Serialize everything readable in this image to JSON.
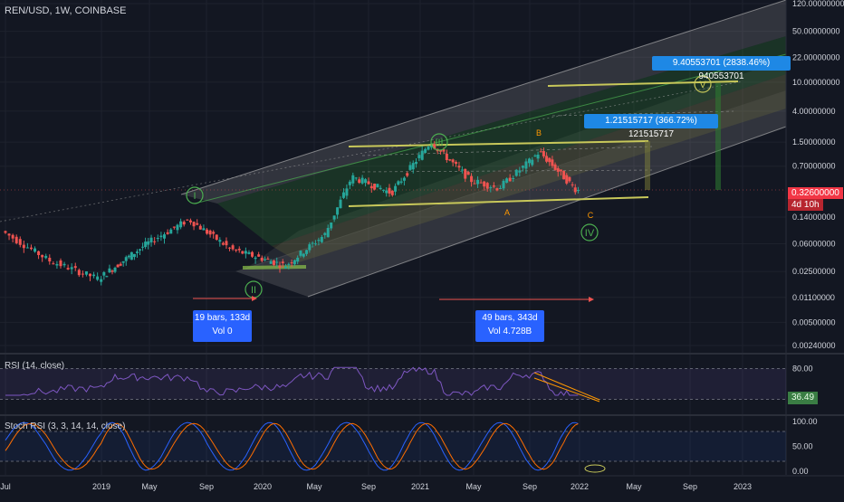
{
  "header": {
    "symbol": "REN/USD, 1W, COINBASE",
    "rsi_label": "RSI (14, close)",
    "stoch_label": "Stoch RSI (3, 3, 14, 14, close)"
  },
  "price_axis": {
    "ticks": [
      {
        "label": "120.00000000",
        "value": 120
      },
      {
        "label": "50.00000000",
        "value": 50
      },
      {
        "label": "22.00000000",
        "value": 22
      },
      {
        "label": "10.00000000",
        "value": 10
      },
      {
        "label": "4.00000000",
        "value": 4
      },
      {
        "label": "1.50000000",
        "value": 1.5
      },
      {
        "label": "0.70000000",
        "value": 0.7
      },
      {
        "label": "0.14000000",
        "value": 0.14
      },
      {
        "label": "0.06000000",
        "value": 0.06
      },
      {
        "label": "0.02500000",
        "value": 0.025
      },
      {
        "label": "0.01100000",
        "value": 0.011
      },
      {
        "label": "0.00500000",
        "value": 0.005
      },
      {
        "label": "0.00240000",
        "value": 0.0024
      }
    ],
    "last_price": "0.32600000",
    "countdown": "4d 10h"
  },
  "rsi_axis": {
    "ticks": [
      "80.00",
      "20.00"
    ],
    "value": "36.49"
  },
  "stoch_axis": {
    "ticks": [
      "100.00",
      "50.00",
      "0.00"
    ]
  },
  "time_axis": [
    "Jul",
    "2019",
    "May",
    "Sep",
    "2020",
    "May",
    "Sep",
    "2021",
    "May",
    "Sep",
    "2022",
    "May",
    "Sep",
    "2023"
  ],
  "annotations": {
    "wave_I": "I",
    "wave_II": "II",
    "wave_III": "III",
    "wave_IV": "IV",
    "wave_V": "V",
    "label_A": "A",
    "label_B": "B",
    "label_C": "C",
    "measure1_line1": "19 bars, 133d",
    "measure1_line2": "Vol 0",
    "measure2_line1": "49 bars, 343d",
    "measure2_line2": "Vol 4.728B",
    "target1": "1.21515717 (366.72%) 121515717",
    "target2": "9.40553701 (2838.46%) 940553701"
  },
  "colors": {
    "background": "#131722",
    "up": "#26a69a",
    "down": "#ef5350",
    "channel_green": "#2e7d32",
    "channel_yellow": "#c8c85a",
    "rsi_line": "#7e57c2",
    "stoch_k": "#2962ff",
    "stoch_d": "#ff6d00"
  },
  "chart_data": {
    "type": "candlestick",
    "title": "REN/USD, 1W, COINBASE",
    "y_scale": "log",
    "ylim": [
      0.0024,
      120
    ],
    "series": [
      {
        "x": "2018-07",
        "y": 0.09
      },
      {
        "x": "2018-10",
        "y": 0.035
      },
      {
        "x": "2019-01",
        "y": 0.02
      },
      {
        "x": "2019-05",
        "y": 0.06
      },
      {
        "x": "2019-08",
        "y": 0.13
      },
      {
        "x": "2019-11",
        "y": 0.05
      },
      {
        "x": "2020-03",
        "y": 0.03
      },
      {
        "x": "2020-06",
        "y": 0.08
      },
      {
        "x": "2020-08",
        "y": 0.5
      },
      {
        "x": "2020-11",
        "y": 0.3
      },
      {
        "x": "2021-02",
        "y": 1.5
      },
      {
        "x": "2021-05",
        "y": 0.45
      },
      {
        "x": "2021-07",
        "y": 0.35
      },
      {
        "x": "2021-10",
        "y": 1.1
      },
      {
        "x": "2022-01",
        "y": 0.326
      }
    ]
  }
}
